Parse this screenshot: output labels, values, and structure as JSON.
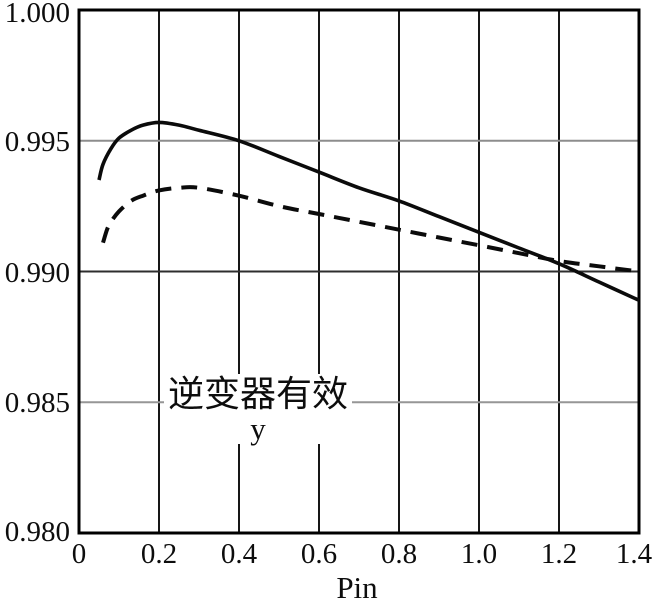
{
  "figure": {
    "xlabel": "Pin",
    "annotation": {
      "line1": "逆变器有效",
      "line2": "y"
    }
  },
  "chart_data": {
    "type": "line",
    "title": "",
    "xlabel": "Pin",
    "ylabel": "逆变器有效 y",
    "annotation": "逆变器有效 y",
    "xlim": [
      0,
      1.4
    ],
    "ylim": [
      0.98,
      1.0
    ],
    "grid": true,
    "legend": "none",
    "x_tick_values": [
      0,
      0.2,
      0.4,
      0.6,
      0.8,
      1.0,
      1.2,
      1.4
    ],
    "x_ticks": [
      "0",
      "0.2",
      "0.4",
      "0.6",
      "0.8",
      "1.0",
      "1.2",
      "1.4"
    ],
    "y_tick_values": [
      1.0,
      0.995,
      0.99,
      0.985,
      0.98
    ],
    "y_ticks": [
      "1.000",
      "0.995",
      "0.990",
      "0.985",
      "0.980"
    ],
    "series": [
      {
        "name": "solid-curve",
        "style": "solid",
        "x": [
          0.05,
          0.06,
          0.08,
          0.1,
          0.13,
          0.16,
          0.2,
          0.25,
          0.3,
          0.4,
          0.5,
          0.6,
          0.7,
          0.8,
          0.9,
          1.0,
          1.1,
          1.2,
          1.3,
          1.4
        ],
        "y": [
          0.9935,
          0.9941,
          0.9947,
          0.9951,
          0.9954,
          0.9956,
          0.9957,
          0.9956,
          0.9954,
          0.995,
          0.9944,
          0.9938,
          0.9932,
          0.9927,
          0.9921,
          0.9915,
          0.9909,
          0.9903,
          0.9896,
          0.9889
        ]
      },
      {
        "name": "dashed-curve",
        "style": "dashed",
        "x": [
          0.06,
          0.07,
          0.08,
          0.1,
          0.13,
          0.16,
          0.2,
          0.25,
          0.3,
          0.4,
          0.5,
          0.6,
          0.7,
          0.8,
          0.9,
          1.0,
          1.1,
          1.2,
          1.3,
          1.4
        ],
        "y": [
          0.9911,
          0.9916,
          0.9919,
          0.9923,
          0.9927,
          0.9929,
          0.9931,
          0.9932,
          0.9932,
          0.9929,
          0.9925,
          0.9922,
          0.9919,
          0.9916,
          0.9913,
          0.991,
          0.9907,
          0.9904,
          0.9902,
          0.99
        ]
      }
    ]
  },
  "colors": {
    "background": "#ffffff",
    "axis": "#000000",
    "curve": "#0b0b0b",
    "grid_dark": "#2e2e2e",
    "grid_light": "#8d8d8d"
  }
}
